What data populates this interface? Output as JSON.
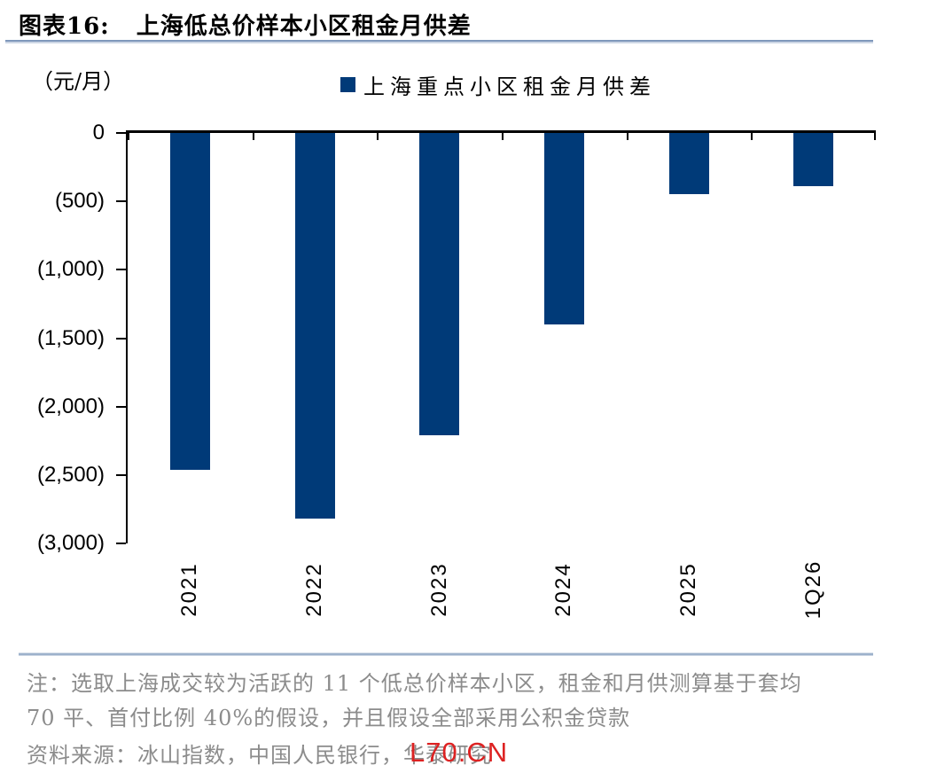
{
  "header": {
    "title_prefix": "图表16:",
    "title": "上海低总价样本小区租金月供差"
  },
  "chart": {
    "unit_label": "（元/月）",
    "legend_label": "上海重点小区租金月供差"
  },
  "chart_data": {
    "type": "bar",
    "title": "上海低总价样本小区租金月供差",
    "series_name": "上海重点小区租金月供差",
    "categories": [
      "2021",
      "2022",
      "2023",
      "2024",
      "2025",
      "1Q26"
    ],
    "values": [
      -2460,
      -2820,
      -2210,
      -1400,
      -450,
      -390
    ],
    "unit": "元/月",
    "ylim": [
      -3000,
      0
    ],
    "y_tick_labels": [
      "0",
      "(500)",
      "(1,000)",
      "(1,500)",
      "(2,000)",
      "(2,500)",
      "(3,000)"
    ],
    "bar_color": "#003a78",
    "grid": false,
    "legend_position": "top-center",
    "x_labels_rotation_deg": -90
  },
  "footer": {
    "note_lines": [
      "注：选取上海成交较为活跃的 11 个低总价样本小区，租金和月供测算基于套均",
      "70 平、首付比例 40%的假设，并且假设全部采用公积金贷款"
    ],
    "source_line": "资料来源：冰山指数，中国人民银行，华泰研究"
  },
  "watermark": {
    "text": "L70.CN",
    "color": "#dd2222"
  }
}
